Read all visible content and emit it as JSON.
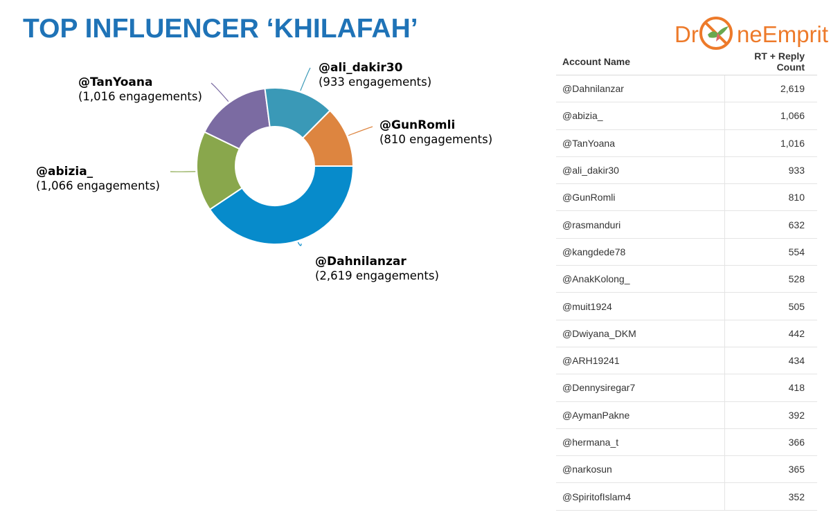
{
  "title": "TOP INFLUENCER ‘KHILAFAH’",
  "logo": {
    "text_left": "Dr",
    "text_right": "neEmprit",
    "color": "#ed7a2a",
    "icon": "drone-bird-logo-icon"
  },
  "chart_data": {
    "type": "pie",
    "variant": "donut",
    "slices": [
      {
        "label": "@Dahnilanzar",
        "value": 2619,
        "value_label": "(2,619 engagements)",
        "color": "#078bcb"
      },
      {
        "label": "@abizia_",
        "value": 1066,
        "value_label": "(1,066 engagements)",
        "color": "#89a74c"
      },
      {
        "label": "@TanYoana",
        "value": 1016,
        "value_label": "(1,016 engagements)",
        "color": "#7b6ba2"
      },
      {
        "label": "@ali_dakir30",
        "value": 933,
        "value_label": "(933 engagements)",
        "color": "#3a99b7"
      },
      {
        "label": "@GunRomli",
        "value": 810,
        "value_label": "(810 engagements)",
        "color": "#dd8540"
      }
    ]
  },
  "table": {
    "headers": [
      "Account Name",
      "RT + Reply Count"
    ],
    "rows": [
      [
        "@Dahnilanzar",
        "2,619"
      ],
      [
        "@abizia_",
        "1,066"
      ],
      [
        "@TanYoana",
        "1,016"
      ],
      [
        "@ali_dakir30",
        "933"
      ],
      [
        "@GunRomli",
        "810"
      ],
      [
        "@rasmanduri",
        "632"
      ],
      [
        "@kangdede78",
        "554"
      ],
      [
        "@AnakKolong_",
        "528"
      ],
      [
        "@muit1924",
        "505"
      ],
      [
        "@Dwiyana_DKM",
        "442"
      ],
      [
        "@ARH19241",
        "434"
      ],
      [
        "@Dennysiregar7",
        "418"
      ],
      [
        "@AymanPakne",
        "392"
      ],
      [
        "@hermana_t",
        "366"
      ],
      [
        "@narkosun",
        "365"
      ],
      [
        "@SpiritofIslam4",
        "352"
      ]
    ]
  }
}
